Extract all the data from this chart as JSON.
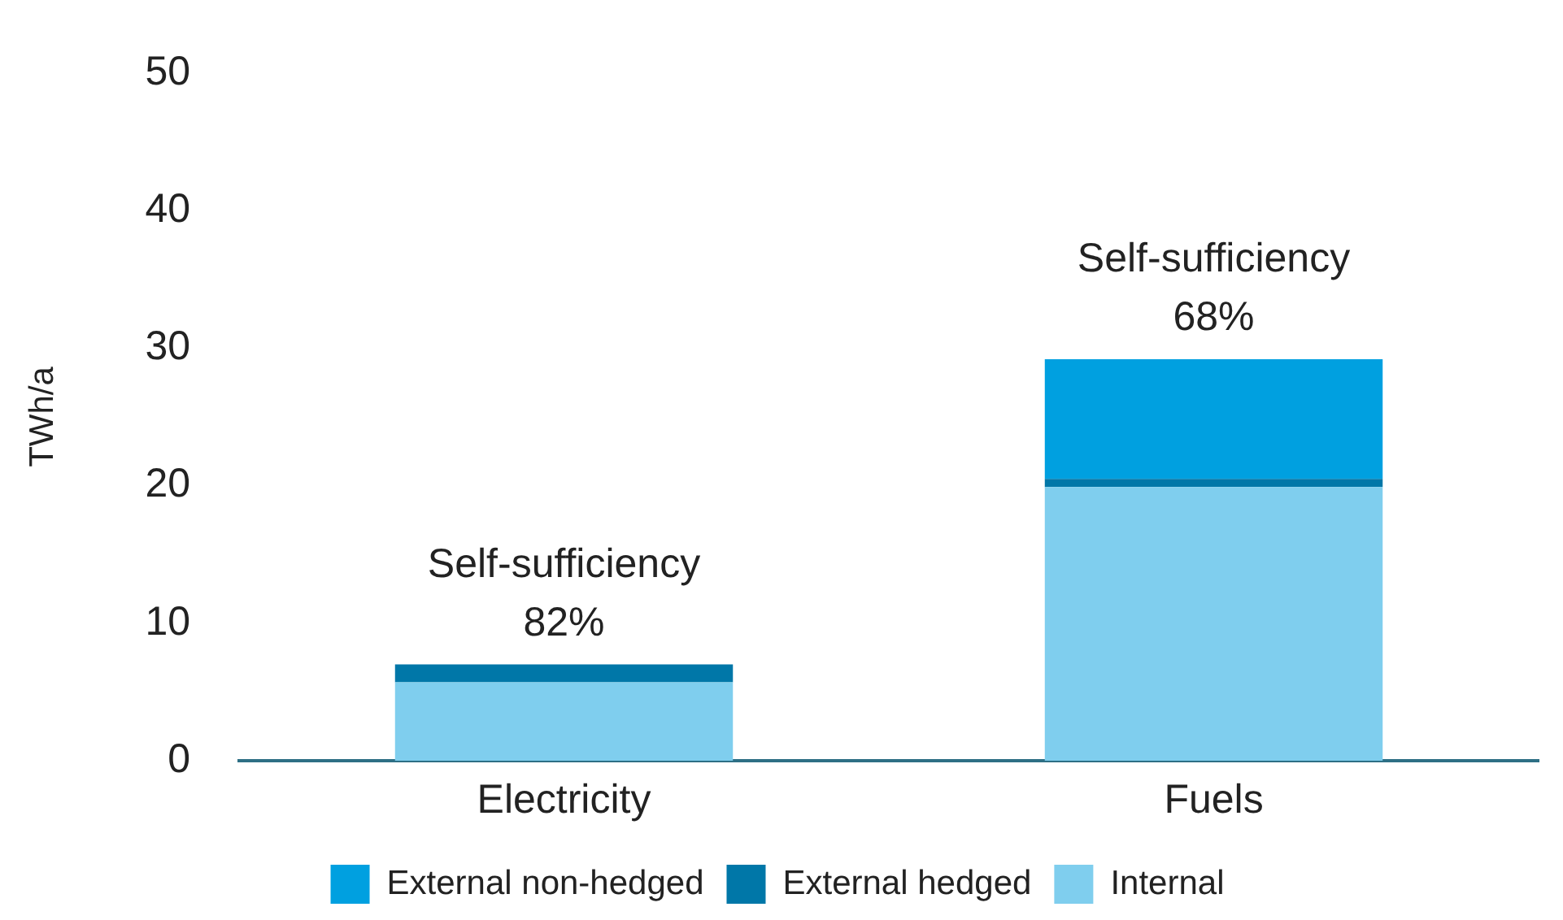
{
  "chart_data": {
    "type": "bar",
    "stacked": true,
    "categories": [
      "Electricity",
      "Fuels"
    ],
    "ylabel": "TWh/a",
    "ylim": [
      0,
      50
    ],
    "yticks": [
      0,
      10,
      20,
      30,
      40,
      50
    ],
    "grid": false,
    "legend": "bottom",
    "series": [
      {
        "name": "Internal",
        "color": "#7fceee",
        "values": [
          5.7,
          19.9
        ]
      },
      {
        "name": "External hedged",
        "color": "#0077a8",
        "values": [
          1.3,
          0.6
        ]
      },
      {
        "name": "External non-hedged",
        "color": "#00a0e0",
        "values": [
          0,
          8.7
        ]
      }
    ],
    "annotations": [
      {
        "text": "Self-sufficiency\n82%",
        "x": "Electricity",
        "y": 7.0
      },
      {
        "text": "Self-sufficiency\n68%",
        "x": "Fuels",
        "y": 29.2
      }
    ]
  }
}
